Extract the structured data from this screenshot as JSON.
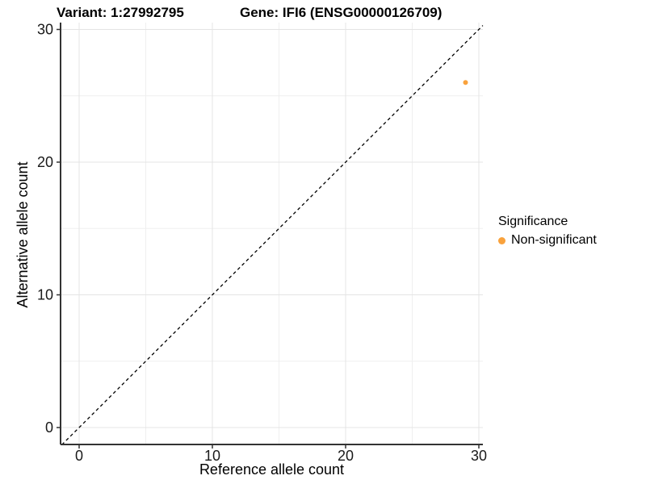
{
  "chart_data": {
    "type": "scatter",
    "titles": {
      "variant": "Variant: 1:27992795",
      "gene": "Gene: IFI6 (ENSG00000126709)"
    },
    "xlabel": "Reference allele count",
    "ylabel": "Alternative allele count",
    "x_ticks": [
      0,
      10,
      20,
      30
    ],
    "y_ticks": [
      0,
      10,
      20,
      30
    ],
    "x_minor_ticks": [
      5,
      15,
      25
    ],
    "y_minor_ticks": [
      5,
      15,
      25
    ],
    "xlim": [
      -1.3,
      30.3
    ],
    "ylim": [
      -1.3,
      30.4
    ],
    "grid": true,
    "points": [
      {
        "x": 29,
        "y": 26,
        "series": "Non-significant"
      }
    ],
    "abline": {
      "slope": 1,
      "intercept": 0,
      "style": "dashed",
      "color": "#000000"
    },
    "legend": {
      "title": "Significance",
      "position": "right",
      "items": [
        {
          "label": "Non-significant",
          "color": "#F9A23C"
        }
      ]
    },
    "colors": {
      "point": "#F9A23C",
      "grid_major": "#E4E4E4",
      "grid_minor": "#EFEFEF",
      "axis_line": "#333333",
      "tick_text": "#1a1a1a"
    }
  }
}
